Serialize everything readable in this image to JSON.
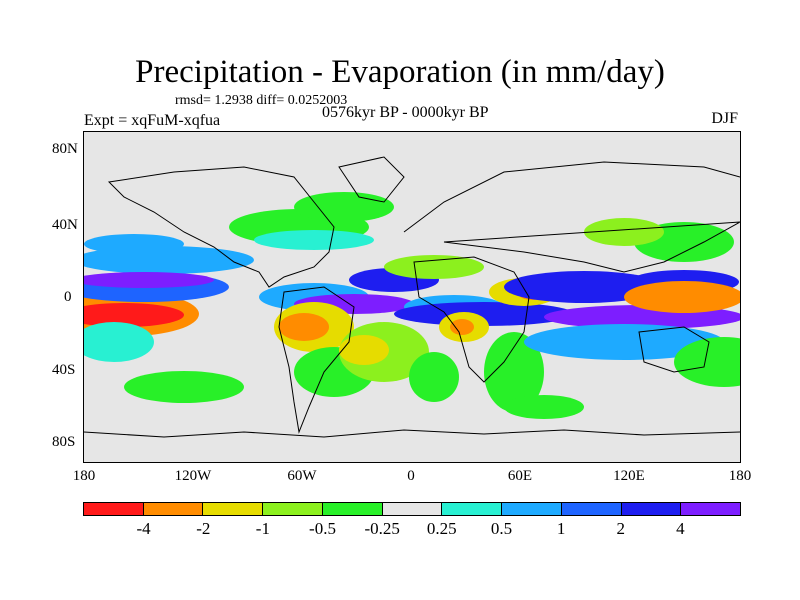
{
  "figure": {
    "title": "Precipitation - Evaporation (in mm/day)",
    "stats": "rmsd= 1.2938  diff= 0.0252003",
    "experiment": "Expt = xqFuM-xqfua",
    "period": "0576kyr BP - 0000kyr BP",
    "season": "DJF"
  },
  "axes": {
    "y_ticks": [
      "80N",
      "40N",
      "0",
      "40S",
      "80S"
    ],
    "x_ticks": [
      "180",
      "120W",
      "60W",
      "0",
      "60E",
      "120E",
      "180"
    ]
  },
  "colorbar": {
    "colors": [
      "#ff1a1a",
      "#ff8c00",
      "#e6dc00",
      "#8cf01e",
      "#28f028",
      "#e6e6e6",
      "#28f0d2",
      "#1eaaff",
      "#1e64ff",
      "#1e1ef0",
      "#7d1eff"
    ],
    "labels": [
      "-4",
      "-2",
      "-1",
      "-0.5",
      "-0.25",
      "0.25",
      "0.5",
      "1",
      "2",
      "4"
    ]
  },
  "field_colors": {
    "neutral": "#e6e6e6",
    "red": "#ff1a1a",
    "orange": "#ff8c00",
    "yellow": "#e6dc00",
    "lightgreen": "#8cf01e",
    "green": "#28f028",
    "cyan": "#28f0d2",
    "lightblue": "#1eaaff",
    "blue": "#1e64ff",
    "darkblue": "#1e1ef0",
    "purple": "#7d1eff"
  }
}
